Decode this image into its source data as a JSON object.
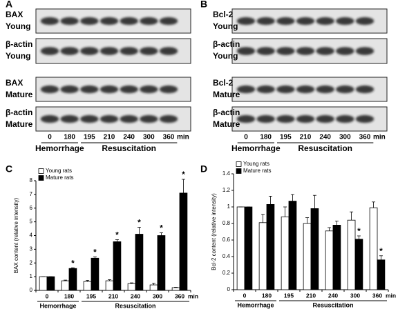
{
  "panels": [
    {
      "label": "A",
      "blot": {
        "rows": [
          [
            "BAX",
            "Young"
          ],
          [
            "β-actin",
            "Young"
          ],
          [
            "BAX",
            "Mature"
          ],
          [
            "β-actin",
            "Mature"
          ]
        ],
        "lanes": [
          "0",
          "180",
          "195",
          "210",
          "240",
          "300",
          "360"
        ],
        "unit": "min",
        "groups": [
          {
            "label": "Hemorrhage",
            "size": 2
          },
          {
            "label": "Resuscitation",
            "size": 5
          }
        ]
      }
    },
    {
      "label": "B",
      "blot": {
        "rows": [
          [
            "Bcl-2",
            "Young"
          ],
          [
            "β-actin",
            "Young"
          ],
          [
            "Bcl-2",
            "Mature"
          ],
          [
            "β-actin",
            "Mature"
          ]
        ],
        "lanes": [
          "0",
          "180",
          "195",
          "210",
          "240",
          "300",
          "360"
        ],
        "unit": "min",
        "groups": [
          {
            "label": "Hemorrhage",
            "size": 2
          },
          {
            "label": "Resuscitation",
            "size": 5
          }
        ]
      }
    }
  ],
  "chart_data": [
    {
      "type": "bar",
      "panel_label": "C",
      "y_label": "BAX content (relative intensity)",
      "categories": [
        "0",
        "180",
        "195",
        "210",
        "240",
        "300",
        "360"
      ],
      "x_unit": "min",
      "groups": [
        {
          "label": "Hemorrhage",
          "size": 2
        },
        {
          "label": "Resuscitation",
          "size": 5
        }
      ],
      "series": [
        {
          "name": "Young rats",
          "color": "#ffffff",
          "values": [
            1,
            0.7,
            0.65,
            0.7,
            0.5,
            0.4,
            0.2
          ],
          "errors": [
            0,
            0.05,
            0.08,
            0.08,
            0.05,
            0.12,
            0.03
          ],
          "annotations": [
            null,
            null,
            null,
            null,
            null,
            null,
            null
          ]
        },
        {
          "name": "Mature rats",
          "color": "#000000",
          "values": [
            1,
            1.6,
            2.35,
            3.55,
            4.1,
            4.0,
            7.1
          ],
          "errors": [
            0,
            0.05,
            0.1,
            0.15,
            0.5,
            0.2,
            1.0
          ],
          "annotations": [
            null,
            "*",
            "*",
            "*",
            "*",
            "*",
            "*"
          ]
        }
      ],
      "ylim": [
        0,
        8
      ],
      "yticks": [
        0,
        1,
        2,
        3,
        4,
        5,
        6,
        7,
        8
      ],
      "legend": "upper left"
    },
    {
      "type": "bar",
      "panel_label": "D",
      "y_label": "Bcl-2 content (relative intensity)",
      "categories": [
        "0",
        "180",
        "195",
        "210",
        "240",
        "300",
        "360"
      ],
      "x_unit": "min",
      "groups": [
        {
          "label": "Hemorrhage",
          "size": 2
        },
        {
          "label": "Resuscitation",
          "size": 5
        }
      ],
      "series": [
        {
          "name": "Young rats",
          "color": "#ffffff",
          "values": [
            1,
            0.81,
            0.88,
            0.8,
            0.71,
            0.84,
            0.99
          ],
          "errors": [
            0,
            0.1,
            0.12,
            0.07,
            0.04,
            0.1,
            0.07
          ],
          "annotations": [
            null,
            null,
            null,
            null,
            null,
            null,
            null
          ]
        },
        {
          "name": "Mature rats",
          "color": "#000000",
          "values": [
            1,
            1.03,
            1.07,
            0.98,
            0.78,
            0.61,
            0.36
          ],
          "errors": [
            0,
            0.1,
            0.08,
            0.16,
            0.05,
            0.04,
            0.05
          ],
          "annotations": [
            null,
            null,
            null,
            null,
            null,
            "*",
            "*"
          ]
        }
      ],
      "ylim": [
        0,
        1.4
      ],
      "yticks": [
        0,
        0.2,
        0.4,
        0.6,
        0.8,
        1,
        1.2,
        1.4
      ],
      "legend": "upper left"
    }
  ]
}
